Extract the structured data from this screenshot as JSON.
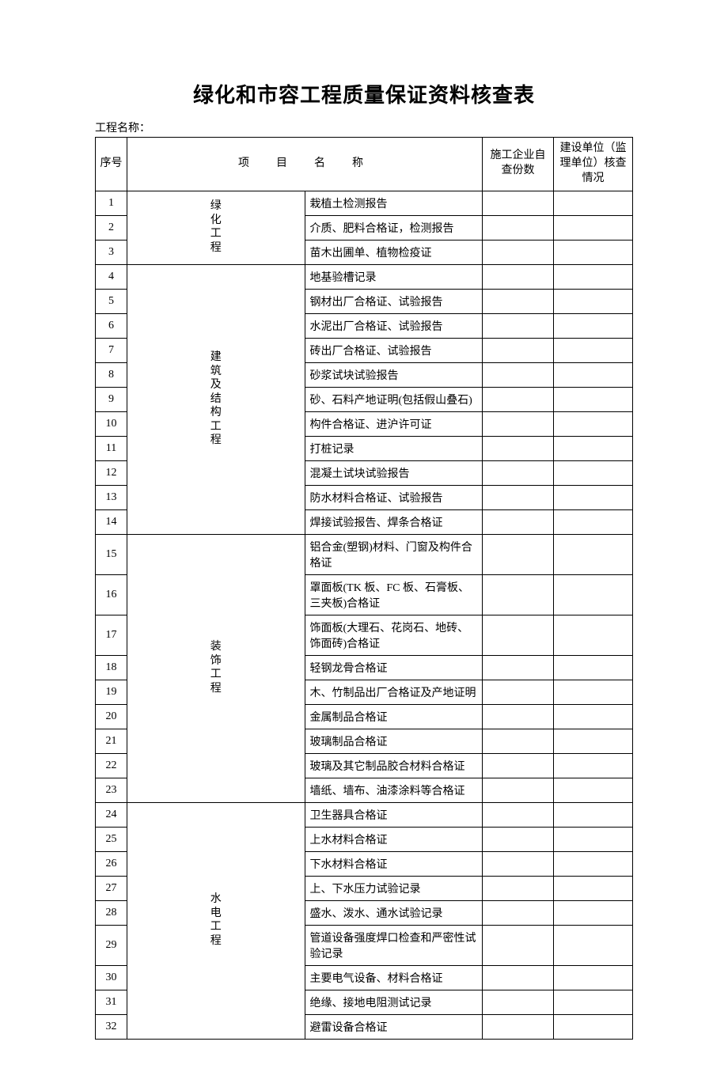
{
  "title": "绿化和市容工程质量保证资料核查表",
  "projectLabel": "工程名称：",
  "headers": {
    "seq": "序号",
    "itemName": "项　目　名　称",
    "check1": "施工企业自查份数",
    "check2": "建设单位（监理单位）核查情况"
  },
  "categories": [
    {
      "label": "绿化工程",
      "labelChars": "绿化工程",
      "items": [
        "栽植土检测报告",
        "介质、肥料合格证，检测报告",
        "苗木出圃单、植物检疫证"
      ]
    },
    {
      "label": "建筑及结构工程",
      "labelChars": "建筑及结构工程",
      "items": [
        "地基验槽记录",
        "钢材出厂合格证、试验报告",
        "水泥出厂合格证、试验报告",
        "砖出厂合格证、试验报告",
        "砂浆试块试验报告",
        "砂、石料产地证明(包括假山叠石)",
        "构件合格证、进沪许可证",
        "打桩记录",
        "混凝土试块试验报告",
        "防水材料合格证、试验报告",
        "焊接试验报告、焊条合格证"
      ]
    },
    {
      "label": "装饰工程",
      "labelChars": "装饰工程",
      "items": [
        "铝合金(塑钢)材料、门窗及构件合格证",
        "罩面板(TK 板、FC 板、石膏板、三夹板)合格证",
        "饰面板(大理石、花岗石、地砖、饰面砖)合格证",
        "轻钢龙骨合格证",
        "木、竹制品出厂合格证及产地证明",
        "金属制品合格证",
        "玻璃制品合格证",
        "玻璃及其它制品胶合材料合格证",
        "墙纸、墙布、油漆涂料等合格证"
      ]
    },
    {
      "label": "水电工程",
      "labelChars": "水电工程",
      "items": [
        "卫生器具合格证",
        "上水材料合格证",
        "下水材料合格证",
        "上、下水压力试验记录",
        "盛水、泼水、通水试验记录",
        "管道设备强度焊口检查和严密性试验记录",
        "主要电气设备、材料合格证",
        "绝缘、接地电阻测试记录",
        "避雷设备合格证"
      ]
    }
  ]
}
